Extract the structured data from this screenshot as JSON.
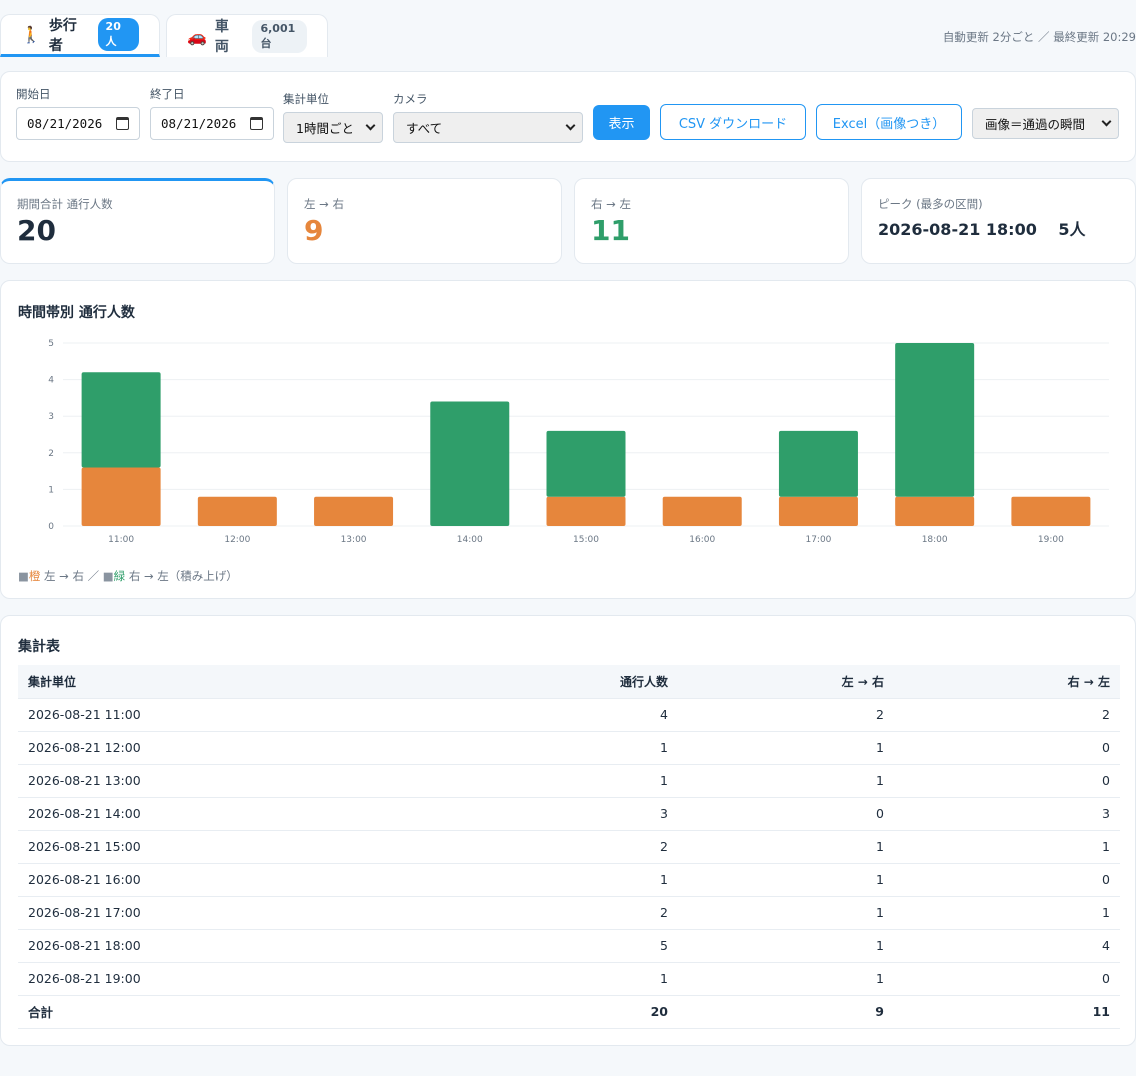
{
  "tabs": [
    {
      "icon": "🚶",
      "label": "歩行者",
      "badge": "20人"
    },
    {
      "icon": "🚗",
      "label": "車両",
      "badge": "6,001台"
    }
  ],
  "update_info": "自動更新 2分ごと ／ 最終更新 20:29",
  "filters": {
    "start_label": "開始日",
    "start_value": "08/21/2026",
    "end_label": "終了日",
    "end_value": "08/21/2026",
    "unit_label": "集計単位",
    "unit_value": "1時間ごと",
    "camera_label": "カメラ",
    "camera_value": "すべて",
    "show_button": "表示",
    "csv_button": "CSV ダウンロード",
    "excel_button": "Excel（画像つき）",
    "image_select": "画像＝通過の瞬間"
  },
  "stats": {
    "total_label": "期間合計 通行人数",
    "total_value": "20",
    "ltr_label": "左 → 右",
    "ltr_value": "9",
    "rtl_label": "右 → 左",
    "rtl_value": "11",
    "peak_label": "ピーク (最多の区間)",
    "peak_value": "2026-08-21 18:00　 5人"
  },
  "colors": {
    "ltr": "#e6863c",
    "rtl": "#2f9e6a",
    "accent": "#2196f3"
  },
  "chart": {
    "title": "時間帯別 通行人数",
    "legend_sq1": "■",
    "legend_c1": "橙",
    "legend_t1": " 左 → 右 ／ ",
    "legend_sq2": "■",
    "legend_c2": "緑",
    "legend_t2": " 右 → 左（積み上げ）"
  },
  "chart_data": {
    "type": "bar",
    "stacked": true,
    "categories": [
      "11:00",
      "12:00",
      "13:00",
      "14:00",
      "15:00",
      "16:00",
      "17:00",
      "18:00",
      "19:00"
    ],
    "series": [
      {
        "name": "左 → 右",
        "values": [
          1.6,
          0.8,
          0.8,
          0,
          0.8,
          0.8,
          0.8,
          0.8,
          0.8
        ]
      },
      {
        "name": "右 → 左",
        "values": [
          2.6,
          0,
          0,
          3.4,
          1.8,
          0,
          1.8,
          4.2,
          0
        ]
      }
    ],
    "yticks": [
      "0",
      "1",
      "2",
      "3",
      "4",
      "5"
    ],
    "ylim": [
      0,
      5
    ],
    "grid": true
  },
  "table": {
    "title": "集計表",
    "headers": [
      "集計単位",
      "通行人数",
      "左 → 右",
      "右 → 左"
    ],
    "rows": [
      [
        "2026-08-21 11:00",
        "4",
        "2",
        "2"
      ],
      [
        "2026-08-21 12:00",
        "1",
        "1",
        "0"
      ],
      [
        "2026-08-21 13:00",
        "1",
        "1",
        "0"
      ],
      [
        "2026-08-21 14:00",
        "3",
        "0",
        "3"
      ],
      [
        "2026-08-21 15:00",
        "2",
        "1",
        "1"
      ],
      [
        "2026-08-21 16:00",
        "1",
        "1",
        "0"
      ],
      [
        "2026-08-21 17:00",
        "2",
        "1",
        "1"
      ],
      [
        "2026-08-21 18:00",
        "5",
        "1",
        "4"
      ],
      [
        "2026-08-21 19:00",
        "1",
        "1",
        "0"
      ]
    ],
    "total": [
      "合計",
      "20",
      "9",
      "11"
    ]
  }
}
